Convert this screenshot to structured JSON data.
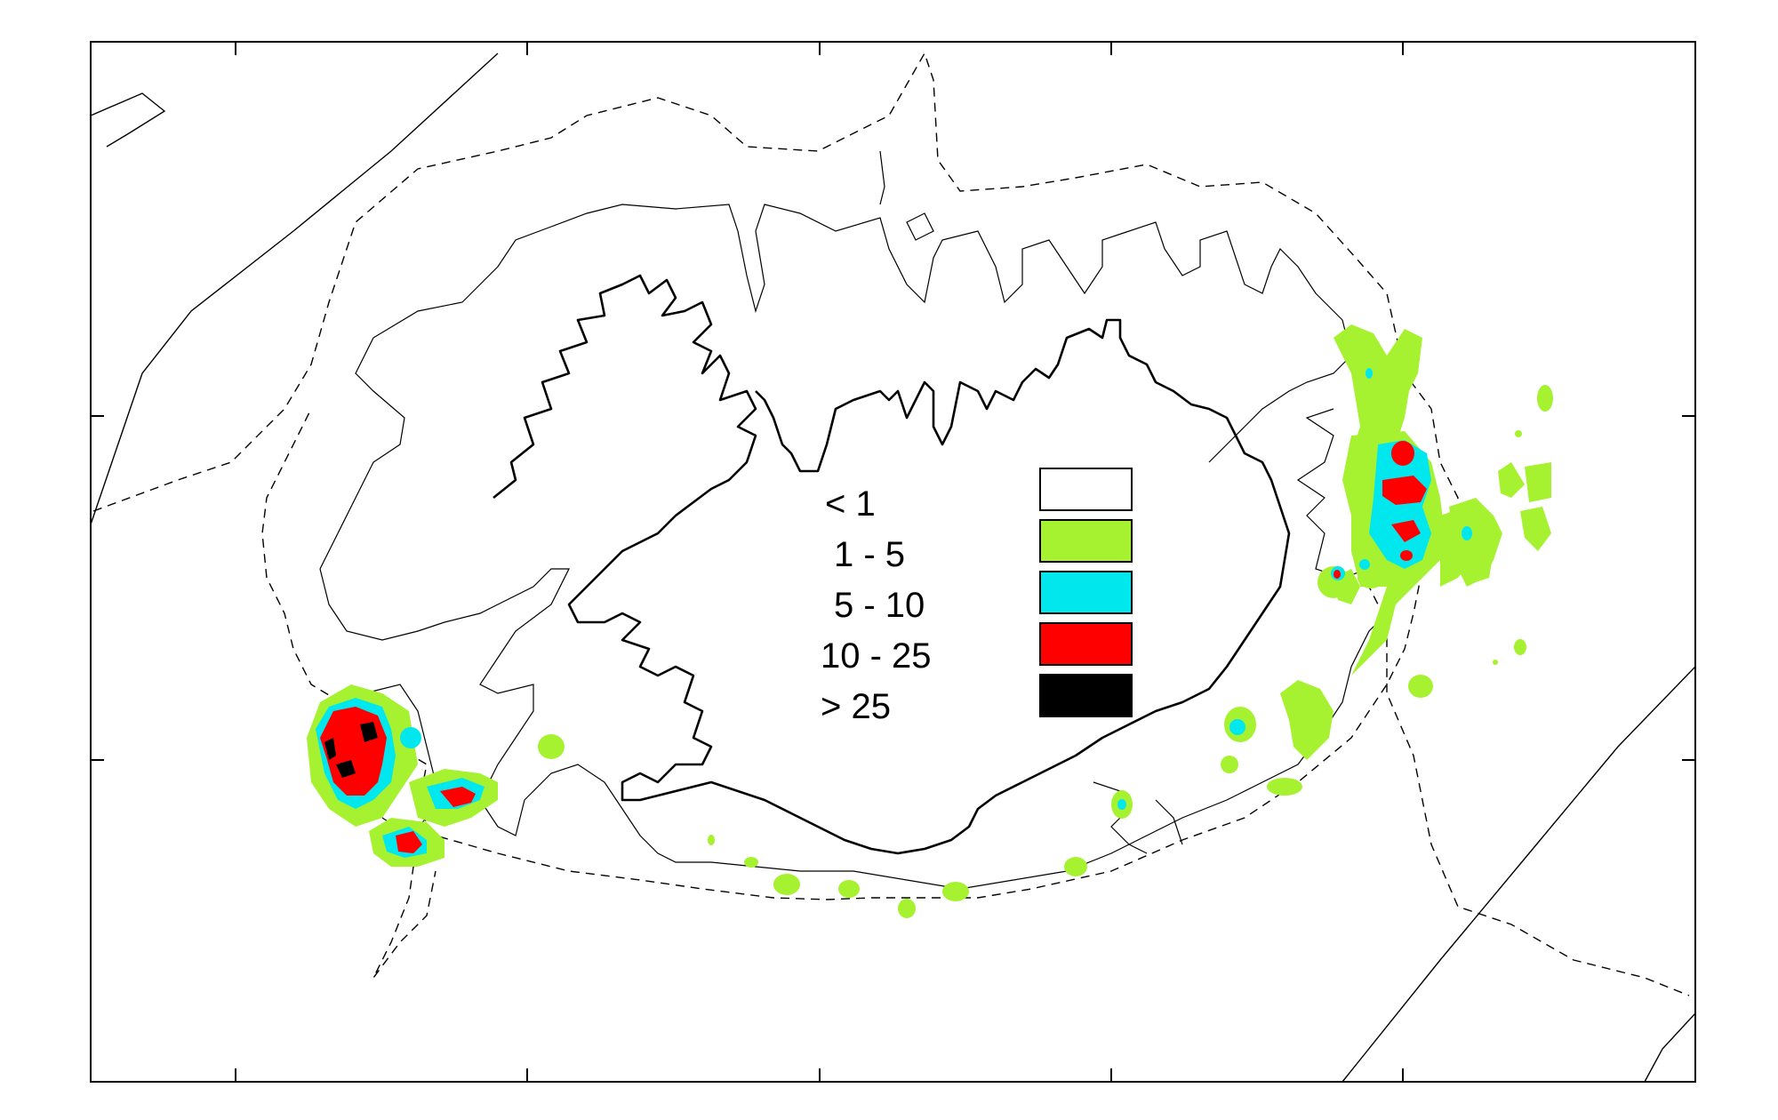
{
  "colors": {
    "frame": "#000000",
    "lt1": "#ffffff",
    "1to5": "#a6f230",
    "5to10": "#00e8ee",
    "10to25": "#ff0000",
    "gt25": "#000000"
  },
  "legend": {
    "items": [
      {
        "label": "< 1",
        "color": "#ffffff"
      },
      {
        "label": "1 -  5",
        "color": "#a6f230"
      },
      {
        "label": "5 - 10",
        "color": "#00e8ee"
      },
      {
        "label": "10 - 25",
        "color": "#ff0000"
      },
      {
        "label": "> 25",
        "color": "#000000"
      }
    ]
  }
}
